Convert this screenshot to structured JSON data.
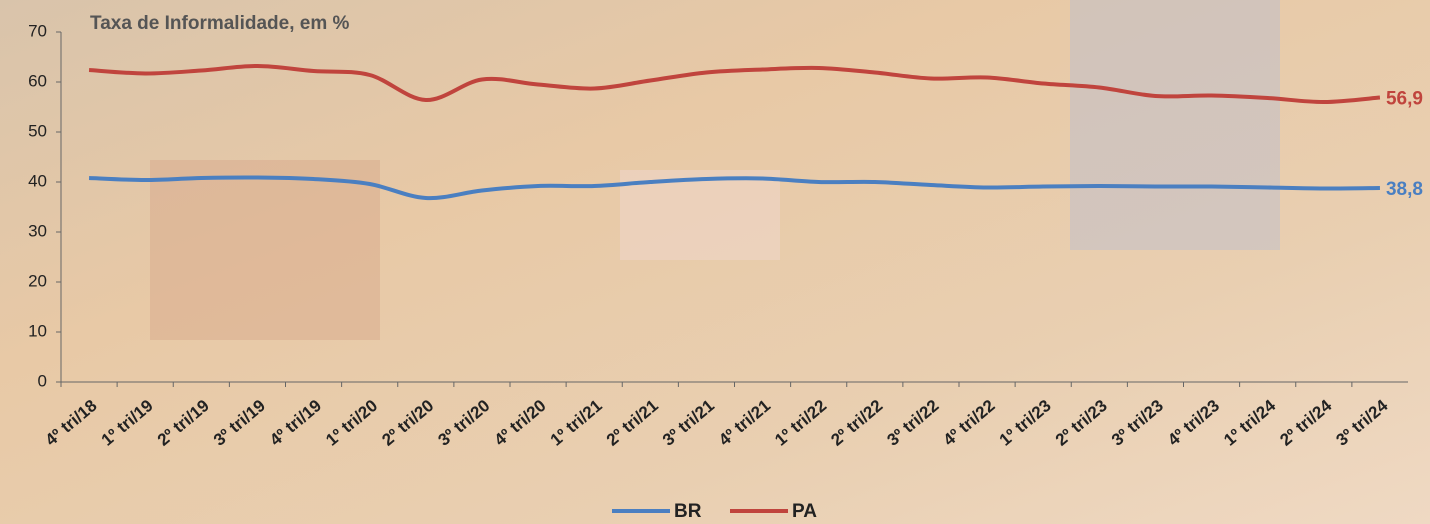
{
  "chart_data": {
    "type": "line",
    "title": "Taxa de Informalidade, em %",
    "categories": [
      "4º tri/18",
      "1º tri/19",
      "2º tri/19",
      "3º tri/19",
      "4º tri/19",
      "1º tri/20",
      "2º tri/20",
      "3º tri/20",
      "4º tri/20",
      "1º tri/21",
      "2º tri/21",
      "3º tri/21",
      "4º tri/21",
      "1º tri/22",
      "2º tri/22",
      "3º tri/22",
      "4º tri/22",
      "1º tri/23",
      "2º tri/23",
      "3º tri/23",
      "4º tri/23",
      "1º tri/24",
      "2º tri/24",
      "3º tri/24"
    ],
    "series": [
      {
        "name": "BR",
        "color": "#4a7fc1",
        "values": [
          40.8,
          40.4,
          40.8,
          40.9,
          40.6,
          39.6,
          36.8,
          38.3,
          39.2,
          39.2,
          40.0,
          40.6,
          40.7,
          40.0,
          40.0,
          39.4,
          38.9,
          39.1,
          39.2,
          39.1,
          39.1,
          38.9,
          38.7,
          38.8
        ],
        "value_labels": [
          null,
          null,
          null,
          null,
          null,
          null,
          null,
          null,
          null,
          null,
          null,
          null,
          null,
          null,
          null,
          null,
          null,
          null,
          null,
          null,
          null,
          null,
          null,
          "38,8"
        ]
      },
      {
        "name": "PA",
        "color": "#c0443d",
        "values": [
          62.4,
          61.7,
          62.3,
          63.2,
          62.2,
          61.4,
          56.4,
          60.5,
          59.5,
          58.7,
          60.3,
          61.9,
          62.5,
          62.8,
          61.9,
          60.7,
          60.9,
          59.7,
          58.9,
          57.2,
          57.3,
          56.8,
          56.0,
          56.9
        ],
        "value_labels": [
          null,
          null,
          null,
          null,
          null,
          null,
          null,
          null,
          null,
          null,
          null,
          null,
          null,
          null,
          null,
          null,
          null,
          null,
          null,
          null,
          null,
          null,
          null,
          "56,9"
        ]
      }
    ],
    "ylim": [
      0,
      70
    ],
    "yticks": [
      0,
      10,
      20,
      30,
      40,
      50,
      60,
      70
    ],
    "legend": "bottom"
  }
}
